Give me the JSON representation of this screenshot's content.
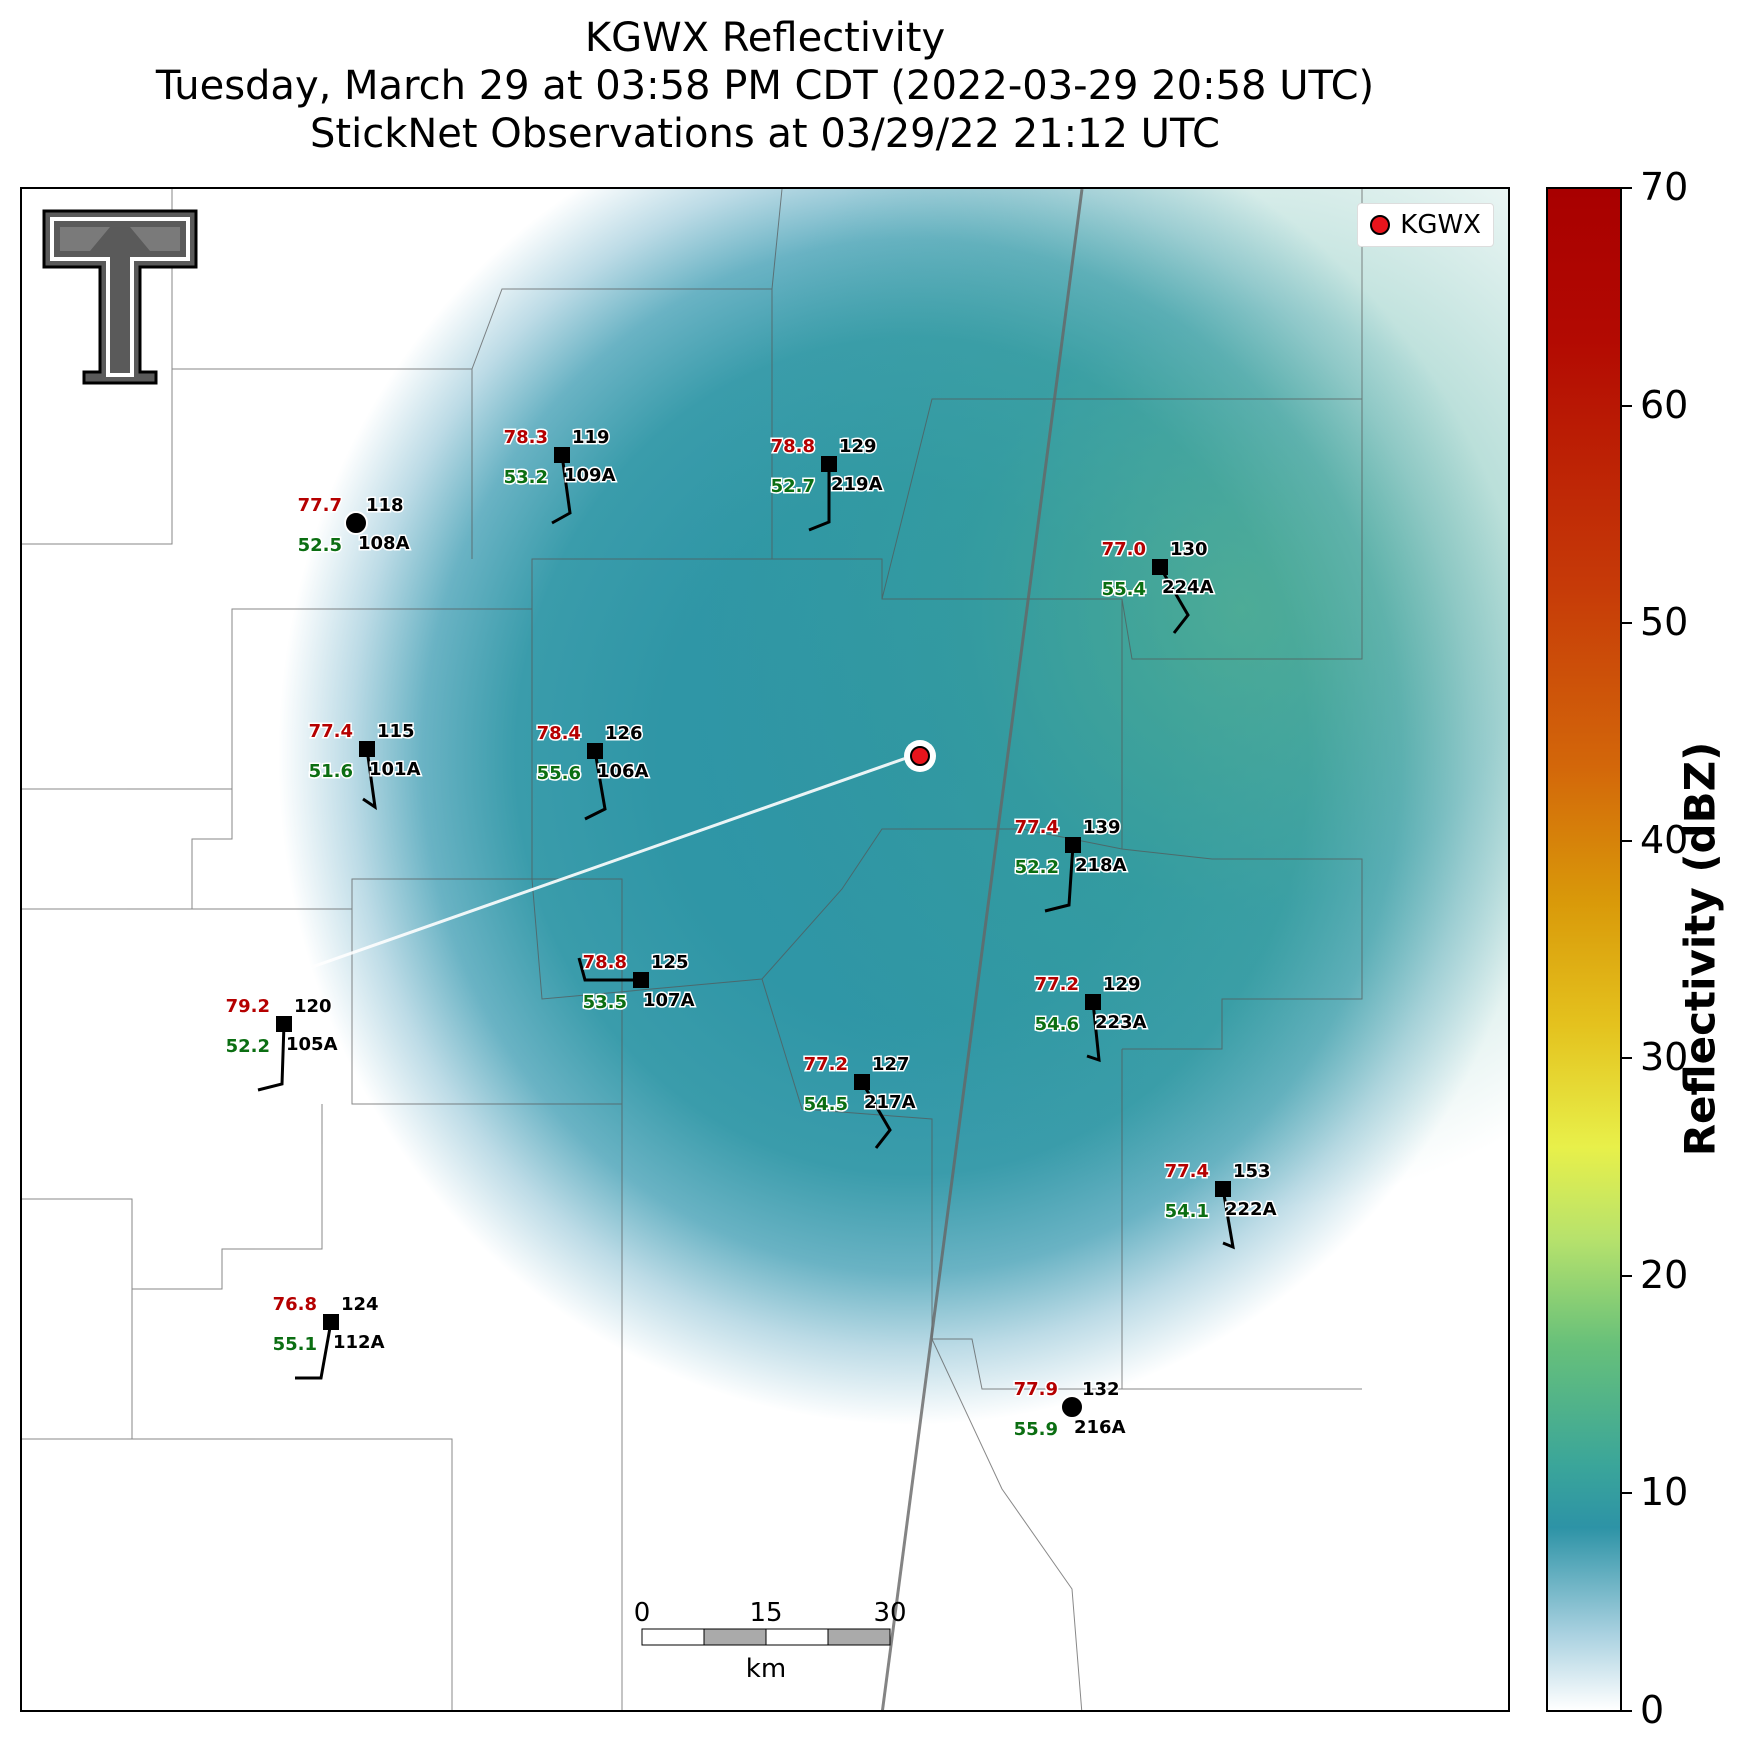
{
  "title": {
    "line1": "KGWX Reflectivity",
    "line2": "Tuesday, March 29 at 03:58 PM CDT (2022-03-29 20:58 UTC)",
    "line3": "StickNet Observations at 03/29/22 21:12 UTC"
  },
  "legend": {
    "label": "KGWX"
  },
  "colorbar": {
    "title": "Reflectivity (dBZ)",
    "ticks": [
      "70",
      "60",
      "50",
      "40",
      "30",
      "20",
      "10",
      "0"
    ]
  },
  "scale_bar": {
    "ticks": [
      "0",
      "15",
      "30"
    ],
    "unit": "km"
  },
  "stations": [
    {
      "id": "108A",
      "temp": "77.7",
      "dew": "52.5",
      "value": "118",
      "calm": true
    },
    {
      "id": "109A",
      "temp": "78.3",
      "dew": "53.2",
      "value": "119",
      "calm": false
    },
    {
      "id": "219A",
      "temp": "78.8",
      "dew": "52.7",
      "value": "129",
      "calm": false
    },
    {
      "id": "224A",
      "temp": "77.0",
      "dew": "55.4",
      "value": "130",
      "calm": false
    },
    {
      "id": "101A",
      "temp": "77.4",
      "dew": "51.6",
      "value": "115",
      "calm": false
    },
    {
      "id": "106A",
      "temp": "78.4",
      "dew": "55.6",
      "value": "126",
      "calm": false
    },
    {
      "id": "218A",
      "temp": "77.4",
      "dew": "52.2",
      "value": "139",
      "calm": false
    },
    {
      "id": "107A",
      "temp": "78.8",
      "dew": "53.5",
      "value": "125",
      "calm": false
    },
    {
      "id": "223A",
      "temp": "77.2",
      "dew": "54.6",
      "value": "129",
      "calm": false
    },
    {
      "id": "105A",
      "temp": "79.2",
      "dew": "52.2",
      "value": "120",
      "calm": false
    },
    {
      "id": "217A",
      "temp": "77.2",
      "dew": "54.5",
      "value": "127",
      "calm": false
    },
    {
      "id": "222A",
      "temp": "77.4",
      "dew": "54.1",
      "value": "153",
      "calm": false
    },
    {
      "id": "112A",
      "temp": "76.8",
      "dew": "55.1",
      "value": "124",
      "calm": false
    },
    {
      "id": "216A",
      "temp": "77.9",
      "dew": "55.9",
      "value": "132",
      "calm": true
    }
  ]
}
